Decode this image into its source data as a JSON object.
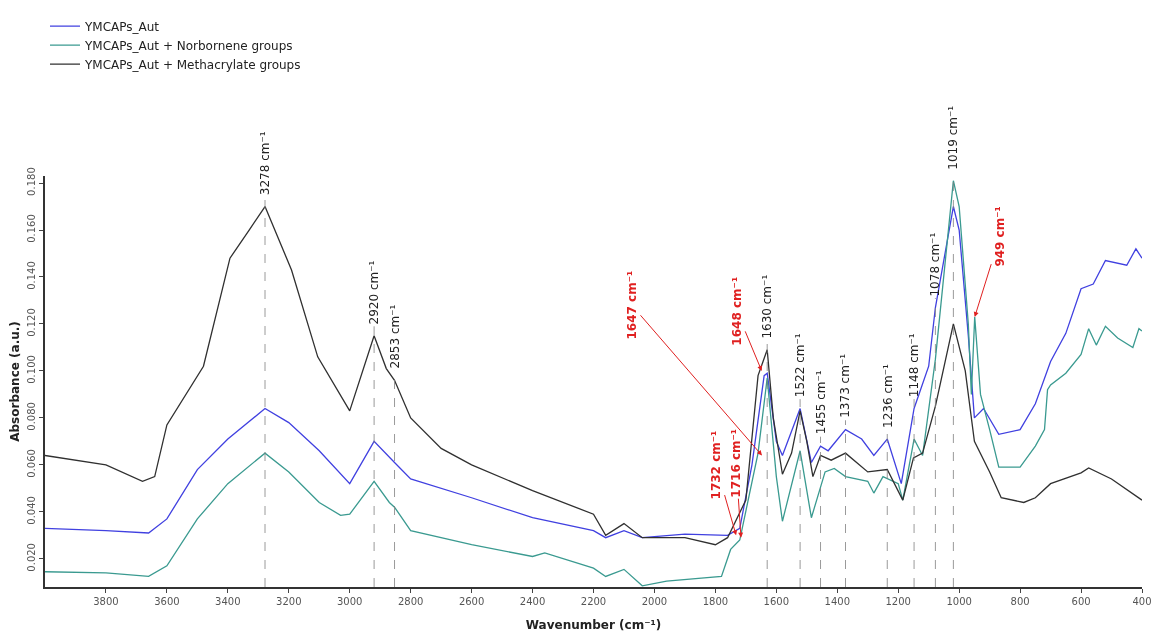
{
  "chart_data": {
    "type": "line",
    "xlabel": "Wavenumber (cm⁻¹)",
    "ylabel": "Absorbance (a.u.)",
    "xlim": [
      4000,
      400
    ],
    "xticks": [
      3800,
      3600,
      3400,
      3200,
      3000,
      2800,
      2600,
      2400,
      2200,
      2000,
      1800,
      1600,
      1400,
      1200,
      1000,
      800,
      600,
      400
    ],
    "ylim": [
      0.008,
      0.183
    ],
    "yticks": [
      {
        "value": 0.02,
        "label": "0.020"
      },
      {
        "value": 0.04,
        "label": "0.040"
      },
      {
        "value": 0.06,
        "label": "0.060"
      },
      {
        "value": 0.08,
        "label": "0.080"
      },
      {
        "value": 0.1,
        "label": "0.100"
      },
      {
        "value": 0.12,
        "label": "0.120"
      },
      {
        "value": 0.14,
        "label": "0.140"
      },
      {
        "value": 0.16,
        "label": "0.160"
      },
      {
        "value": 0.18,
        "label": "0.180"
      }
    ],
    "legend": "top left",
    "marker": "none",
    "line_style": "solid",
    "series": [
      {
        "name": "YMCAPs_Aut",
        "color": "#4040e0",
        "x": [
          4000,
          3800,
          3660,
          3600,
          3500,
          3400,
          3278,
          3200,
          3100,
          3000,
          2920,
          2853,
          2800,
          2600,
          2400,
          2200,
          2160,
          2100,
          2040,
          1900,
          1760,
          1720,
          1680,
          1640,
          1630,
          1600,
          1580,
          1522,
          1485,
          1455,
          1430,
          1373,
          1320,
          1280,
          1236,
          1190,
          1148,
          1100,
          1078,
          1019,
          1000,
          970,
          950,
          920,
          870,
          800,
          750,
          700,
          650,
          600,
          560,
          520,
          450,
          420,
          400
        ],
        "values": [
          0.033,
          0.032,
          0.031,
          0.037,
          0.058,
          0.071,
          0.084,
          0.078,
          0.066,
          0.052,
          0.07,
          0.061,
          0.054,
          0.046,
          0.0375,
          0.032,
          0.029,
          0.032,
          0.029,
          0.0305,
          0.03,
          0.033,
          0.06,
          0.098,
          0.099,
          0.07,
          0.064,
          0.084,
          0.061,
          0.068,
          0.066,
          0.075,
          0.071,
          0.064,
          0.071,
          0.052,
          0.084,
          0.102,
          0.127,
          0.17,
          0.16,
          0.115,
          0.08,
          0.084,
          0.073,
          0.075,
          0.086,
          0.104,
          0.116,
          0.135,
          0.137,
          0.147,
          0.145,
          0.152,
          0.148
        ]
      },
      {
        "name": "YMCAPs_Aut + Norbornene groups",
        "color": "#3a9a90",
        "x": [
          4000,
          3800,
          3660,
          3600,
          3500,
          3400,
          3278,
          3200,
          3100,
          3030,
          3000,
          2920,
          2870,
          2853,
          2800,
          2600,
          2400,
          2360,
          2200,
          2160,
          2100,
          2040,
          1960,
          1780,
          1750,
          1720,
          1660,
          1630,
          1600,
          1580,
          1522,
          1485,
          1440,
          1410,
          1373,
          1300,
          1280,
          1250,
          1200,
          1185,
          1148,
          1120,
          1078,
          1019,
          1000,
          970,
          960,
          949,
          930,
          900,
          870,
          800,
          750,
          720,
          710,
          700,
          650,
          600,
          575,
          550,
          520,
          480,
          430,
          410,
          400
        ],
        "values": [
          0.0145,
          0.014,
          0.0125,
          0.017,
          0.037,
          0.052,
          0.065,
          0.057,
          0.044,
          0.0385,
          0.039,
          0.053,
          0.044,
          0.042,
          0.032,
          0.026,
          0.021,
          0.0225,
          0.016,
          0.0125,
          0.0155,
          0.0085,
          0.0105,
          0.0125,
          0.024,
          0.028,
          0.065,
          0.097,
          0.055,
          0.036,
          0.066,
          0.0375,
          0.057,
          0.0585,
          0.055,
          0.053,
          0.048,
          0.055,
          0.052,
          0.045,
          0.071,
          0.064,
          0.105,
          0.181,
          0.17,
          0.12,
          0.09,
          0.123,
          0.09,
          0.075,
          0.059,
          0.059,
          0.068,
          0.075,
          0.092,
          0.094,
          0.099,
          0.107,
          0.118,
          0.111,
          0.119,
          0.114,
          0.11,
          0.118,
          0.117
        ]
      },
      {
        "name": "YMCAPs_Aut + Methacrylate groups",
        "color": "#303030",
        "x": [
          4000,
          3800,
          3680,
          3640,
          3600,
          3480,
          3393,
          3330,
          3278,
          3191,
          3105,
          3000,
          2920,
          2880,
          2853,
          2800,
          2700,
          2600,
          2400,
          2200,
          2160,
          2100,
          2040,
          2000,
          1900,
          1800,
          1760,
          1700,
          1660,
          1630,
          1610,
          1580,
          1550,
          1522,
          1500,
          1480,
          1455,
          1420,
          1373,
          1300,
          1236,
          1185,
          1150,
          1120,
          1078,
          1019,
          980,
          950,
          900,
          862,
          788,
          750,
          700,
          600,
          575,
          500,
          400
        ],
        "values": [
          0.064,
          0.06,
          0.053,
          0.055,
          0.077,
          0.102,
          0.148,
          0.16,
          0.17,
          0.143,
          0.106,
          0.083,
          0.115,
          0.101,
          0.096,
          0.08,
          0.067,
          0.06,
          0.049,
          0.039,
          0.03,
          0.035,
          0.029,
          0.029,
          0.029,
          0.026,
          0.029,
          0.045,
          0.098,
          0.109,
          0.08,
          0.056,
          0.065,
          0.083,
          0.07,
          0.055,
          0.064,
          0.062,
          0.065,
          0.057,
          0.058,
          0.045,
          0.063,
          0.065,
          0.085,
          0.12,
          0.1,
          0.07,
          0.057,
          0.046,
          0.044,
          0.046,
          0.052,
          0.0566,
          0.0587,
          0.054,
          0.045
        ]
      }
    ],
    "ref_lines": [
      {
        "axis": "x",
        "value": 3278,
        "label": "3278 cm⁻¹",
        "color": "#808080",
        "line_style": "dashed"
      },
      {
        "axis": "x",
        "value": 2920,
        "label": "2920 cm⁻¹",
        "color": "#808080",
        "line_style": "dashed"
      },
      {
        "axis": "x",
        "value": 2853,
        "label": "2853 cm⁻¹",
        "color": "#808080",
        "line_style": "dashed"
      },
      {
        "axis": "x",
        "value": 1630,
        "label": "1630 cm⁻¹",
        "color": "#808080",
        "line_style": "dashed"
      },
      {
        "axis": "x",
        "value": 1522,
        "label": "1522 cm⁻¹",
        "color": "#808080",
        "line_style": "dashed"
      },
      {
        "axis": "x",
        "value": 1455,
        "label": "1455 cm⁻¹",
        "color": "#808080",
        "line_style": "dashed"
      },
      {
        "axis": "x",
        "value": 1373,
        "label": "1373 cm⁻¹",
        "color": "#808080",
        "line_style": "dashed"
      },
      {
        "axis": "x",
        "value": 1236,
        "label": "1236 cm⁻¹",
        "color": "#808080",
        "line_style": "dashed"
      },
      {
        "axis": "x",
        "value": 1148,
        "label": "1148 cm⁻¹",
        "color": "#808080",
        "line_style": "dashed"
      },
      {
        "axis": "x",
        "value": 1078,
        "label": "1078 cm⁻¹",
        "color": "#808080",
        "line_style": "dashed"
      },
      {
        "axis": "x",
        "value": 1019,
        "label": "1019 cm⁻¹",
        "color": "#808080",
        "line_style": "dashed"
      }
    ],
    "annotations": [
      {
        "text": "1647 cm⁻¹",
        "x": 1647,
        "y": 0.064
      },
      {
        "text": "1648 cm⁻¹",
        "x": 1648,
        "y": 0.1
      },
      {
        "text": "1732 cm⁻¹",
        "x": 1732,
        "y": 0.03
      },
      {
        "text": "1716 cm⁻¹",
        "x": 1716,
        "y": 0.029
      },
      {
        "text": "949 cm⁻¹",
        "x": 949,
        "y": 0.123
      }
    ]
  }
}
